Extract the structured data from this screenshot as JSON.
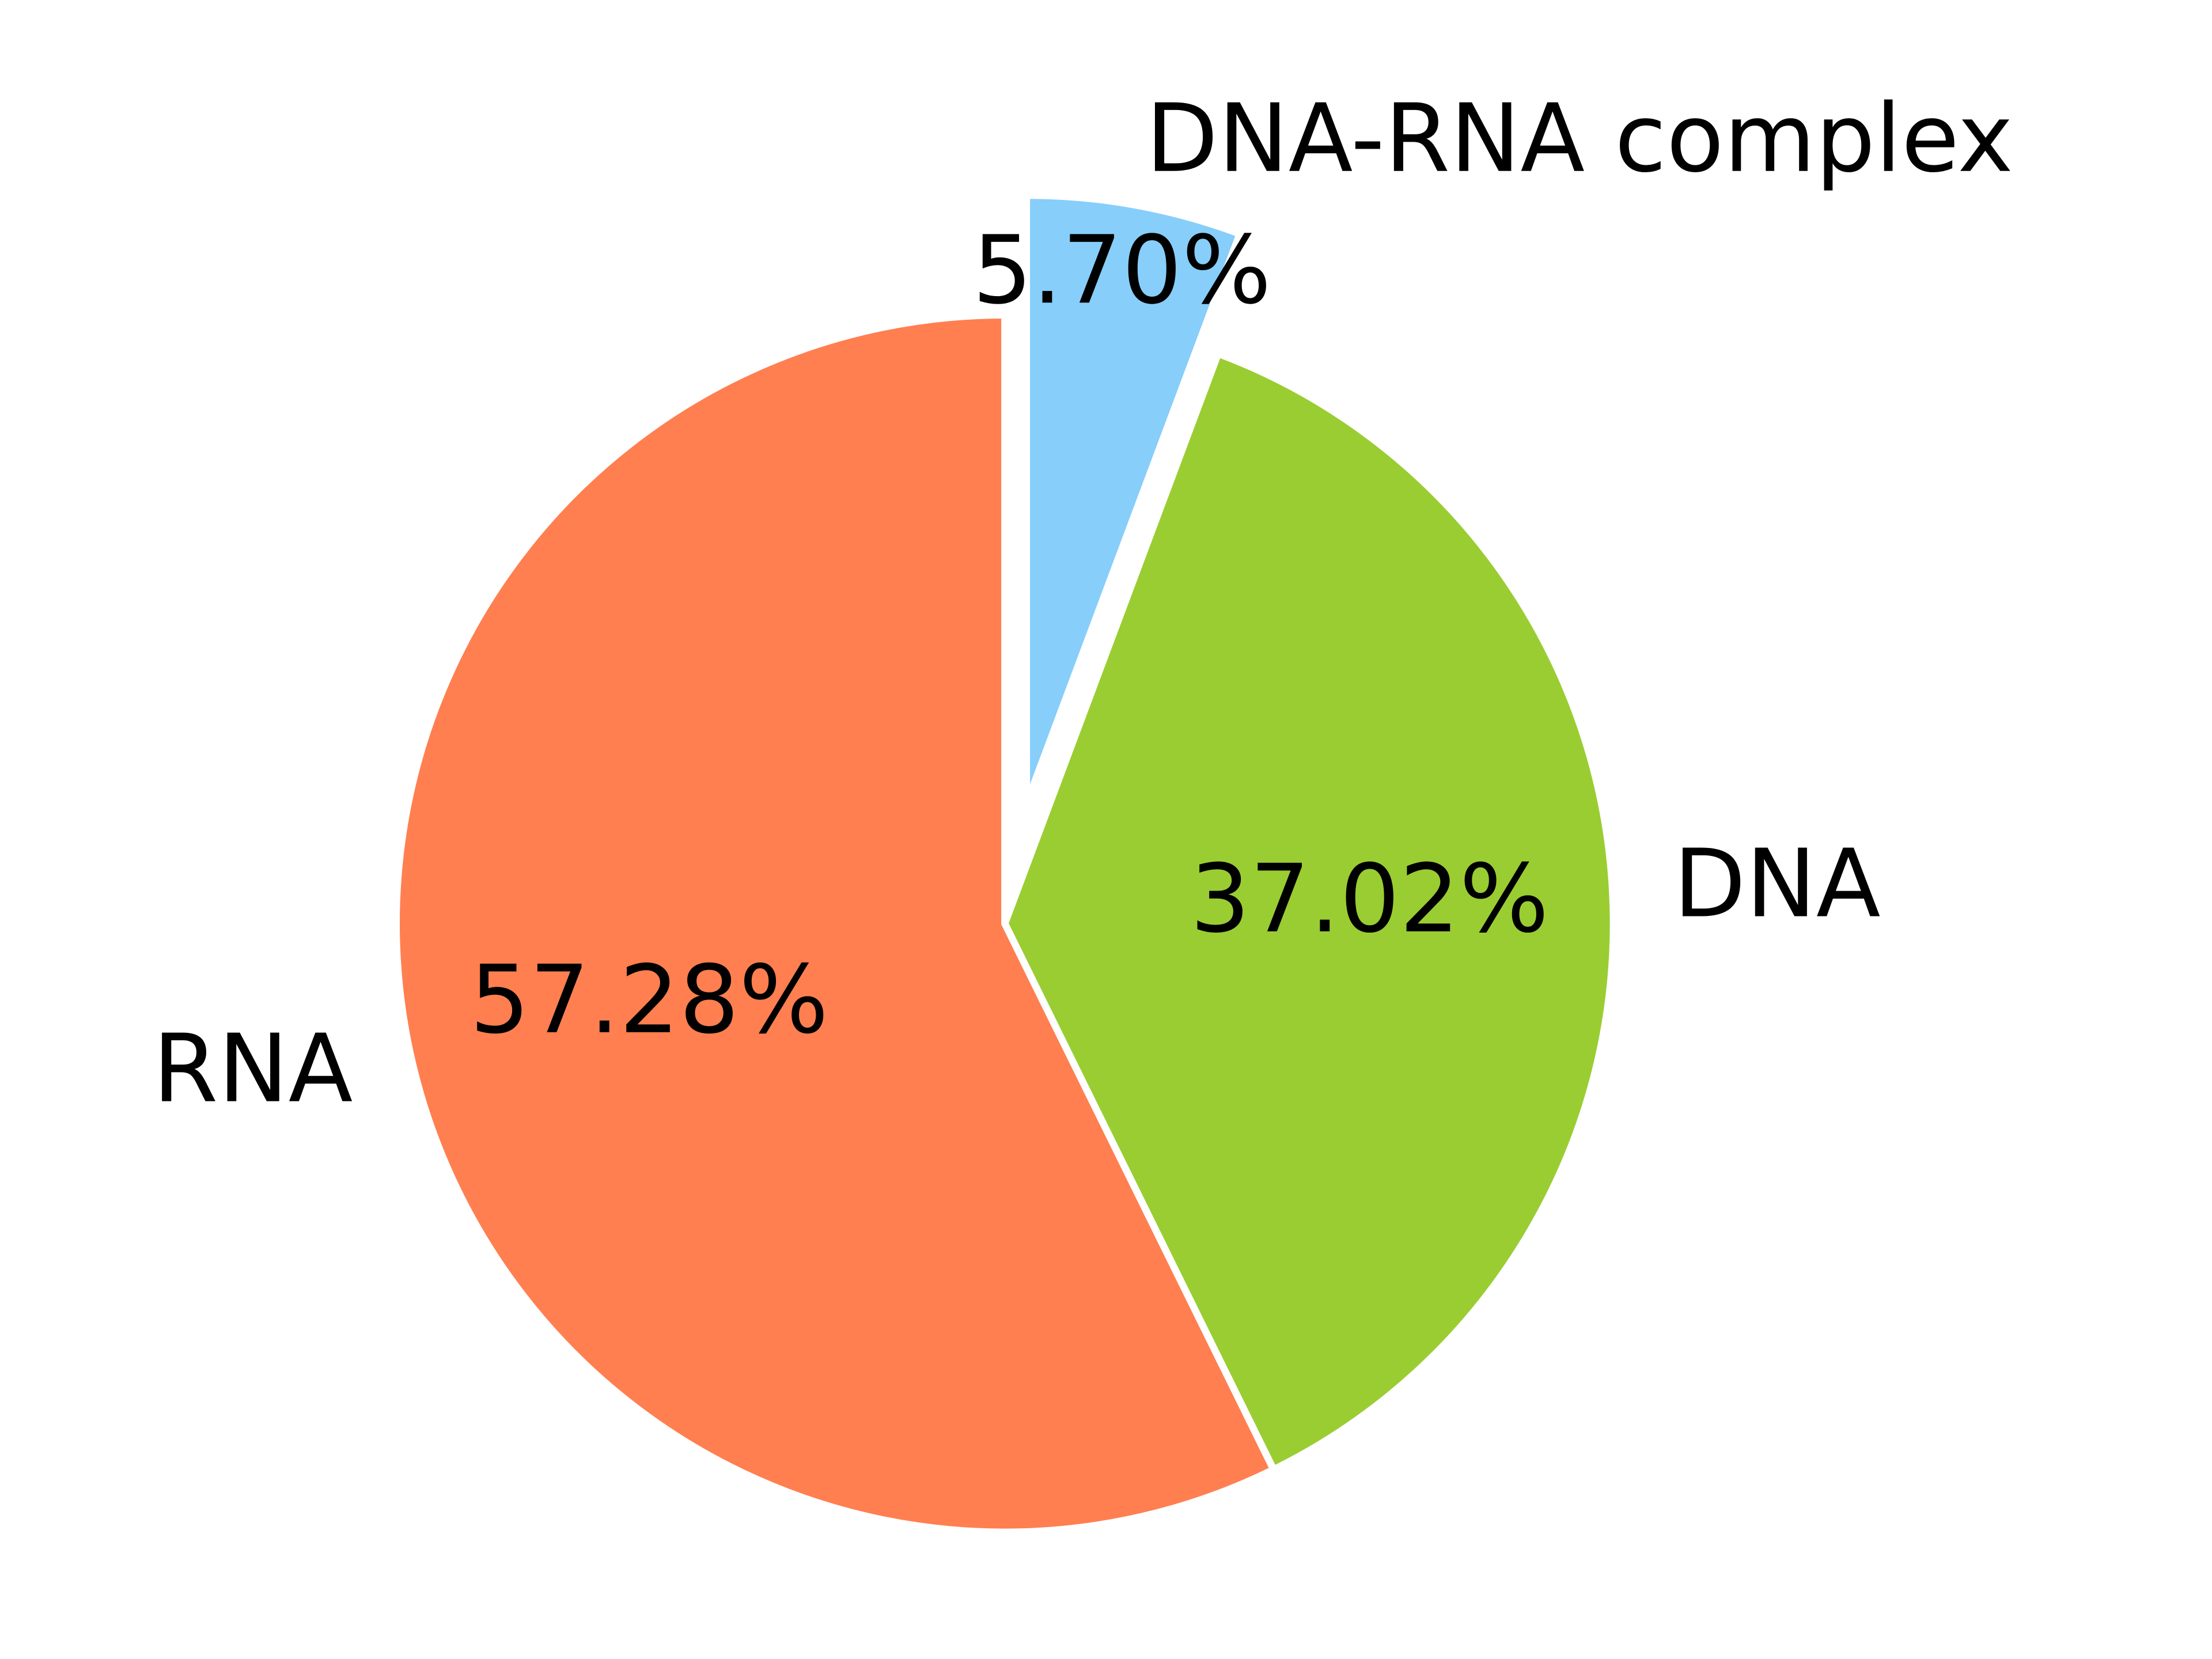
{
  "chart_data": {
    "type": "pie",
    "categories": [
      "DNA-RNA complex",
      "DNA",
      "RNA"
    ],
    "values": [
      5.7,
      37.02,
      57.28
    ],
    "value_labels": [
      "5.70%",
      "37.02%",
      "57.28%"
    ],
    "colors": [
      "#87cefa",
      "#9acd32",
      "#ff7f50"
    ],
    "explode": [
      0.2,
      0,
      0
    ]
  }
}
